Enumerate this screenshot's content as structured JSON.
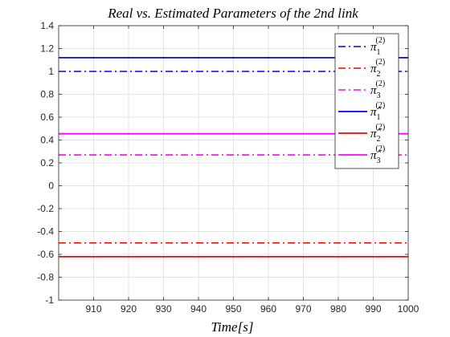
{
  "chart_data": {
    "type": "line",
    "title": "Real vs. Estimated Parameters of the 2nd link",
    "xlabel": "Time[s]",
    "ylabel": "",
    "xlim": [
      900,
      1000
    ],
    "ylim": [
      -1,
      1.4
    ],
    "xticks": [
      910,
      920,
      930,
      940,
      950,
      960,
      970,
      980,
      990,
      1000
    ],
    "yticks": [
      -1,
      -0.8,
      -0.6,
      -0.4,
      -0.2,
      0,
      0.2,
      0.4,
      0.6,
      0.8,
      1,
      1.2,
      1.4
    ],
    "grid": true,
    "legend_position": "top-right",
    "series": [
      {
        "name": "π1(2)",
        "base": "π",
        "sub": "1",
        "sup": "(2)",
        "hat": false,
        "style": "dashdot",
        "color": "#0000ff",
        "x": [
          900,
          1000
        ],
        "y": [
          1.0,
          1.0
        ]
      },
      {
        "name": "π2(2)",
        "base": "π",
        "sub": "2",
        "sup": "(2)",
        "hat": false,
        "style": "dashdot",
        "color": "#ff0000",
        "x": [
          900,
          1000
        ],
        "y": [
          -0.5,
          -0.5
        ]
      },
      {
        "name": "π3(2)",
        "base": "π",
        "sub": "3",
        "sup": "(2)",
        "hat": false,
        "style": "dashdot",
        "color": "#ff00ff",
        "x": [
          900,
          1000
        ],
        "y": [
          0.27,
          0.27
        ]
      },
      {
        "name": "π̂1(2)",
        "base": "π",
        "sub": "1",
        "sup": "(2)",
        "hat": true,
        "style": "solid",
        "color": "#0000ff",
        "x": [
          900,
          1000
        ],
        "y": [
          1.12,
          1.12
        ]
      },
      {
        "name": "π̂2(2)",
        "base": "π",
        "sub": "2",
        "sup": "(2)",
        "hat": true,
        "style": "solid",
        "color": "#ff0000",
        "x": [
          900,
          1000
        ],
        "y": [
          -0.62,
          -0.62
        ]
      },
      {
        "name": "π̂3(2)",
        "base": "π",
        "sub": "3",
        "sup": "(2)",
        "hat": true,
        "style": "solid",
        "color": "#ff00ff",
        "x": [
          900,
          1000
        ],
        "y": [
          0.455,
          0.455
        ]
      }
    ]
  }
}
